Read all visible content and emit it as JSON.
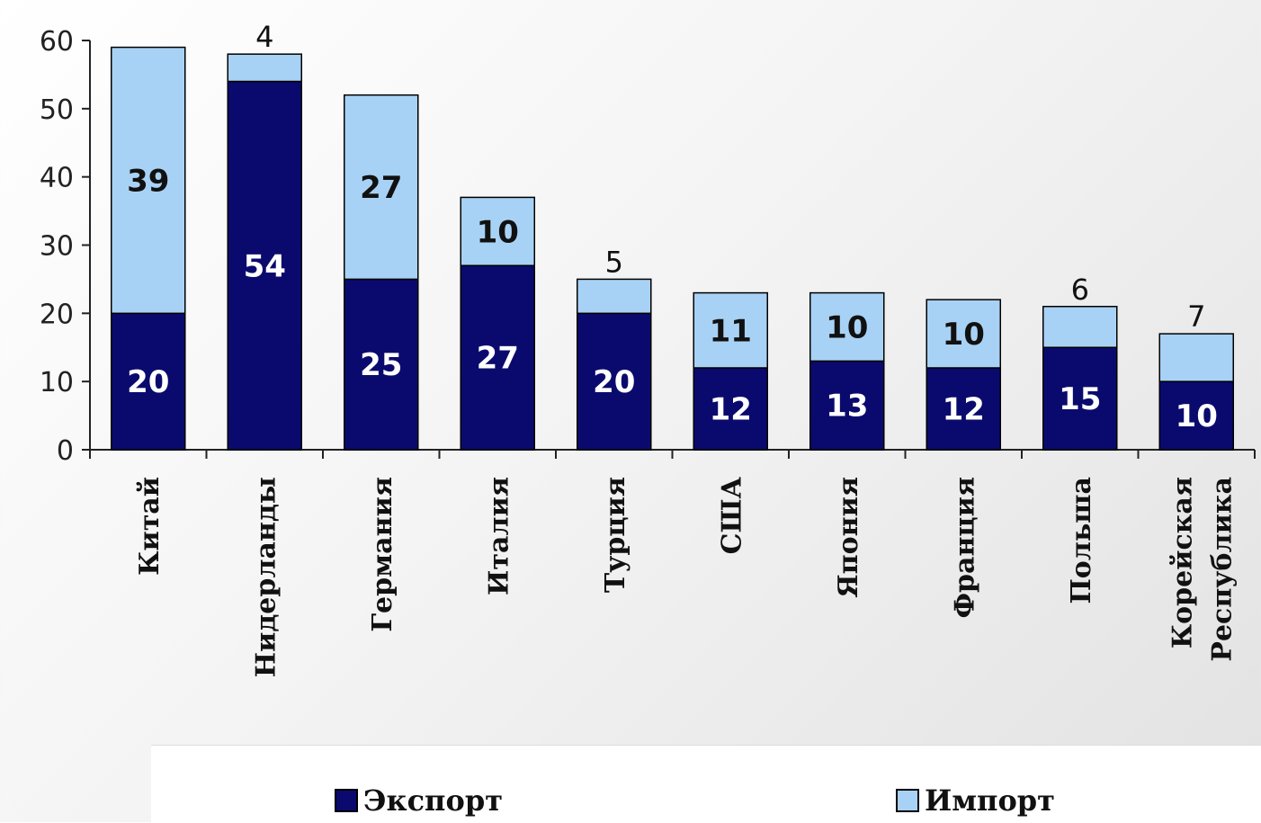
{
  "colors": {
    "export": "#0a0a6e",
    "import": "#a8d2f5",
    "axis": "#222222",
    "label_on_export": "#ffffff",
    "label_on_import": "#111111"
  },
  "chart_data": {
    "type": "bar",
    "stacked": true,
    "categories": [
      "Китай",
      "Нидерланды",
      "Германия",
      "Италия",
      "Турция",
      "США",
      "Япония",
      "Франция",
      "Польша",
      "Корейская Республика"
    ],
    "series": [
      {
        "name": "Экспорт",
        "values": [
          20,
          54,
          25,
          27,
          20,
          12,
          13,
          12,
          15,
          10
        ]
      },
      {
        "name": "Импорт",
        "values": [
          39,
          4,
          27,
          10,
          5,
          11,
          10,
          10,
          6,
          7
        ]
      }
    ],
    "ylim": [
      0,
      60
    ],
    "yticks": [
      "0",
      "10",
      "20",
      "30",
      "40",
      "50",
      "60"
    ],
    "grid": false,
    "legend_position": "bottom"
  },
  "legend": {
    "export_label": "Экспорт",
    "import_label": "Импорт"
  }
}
